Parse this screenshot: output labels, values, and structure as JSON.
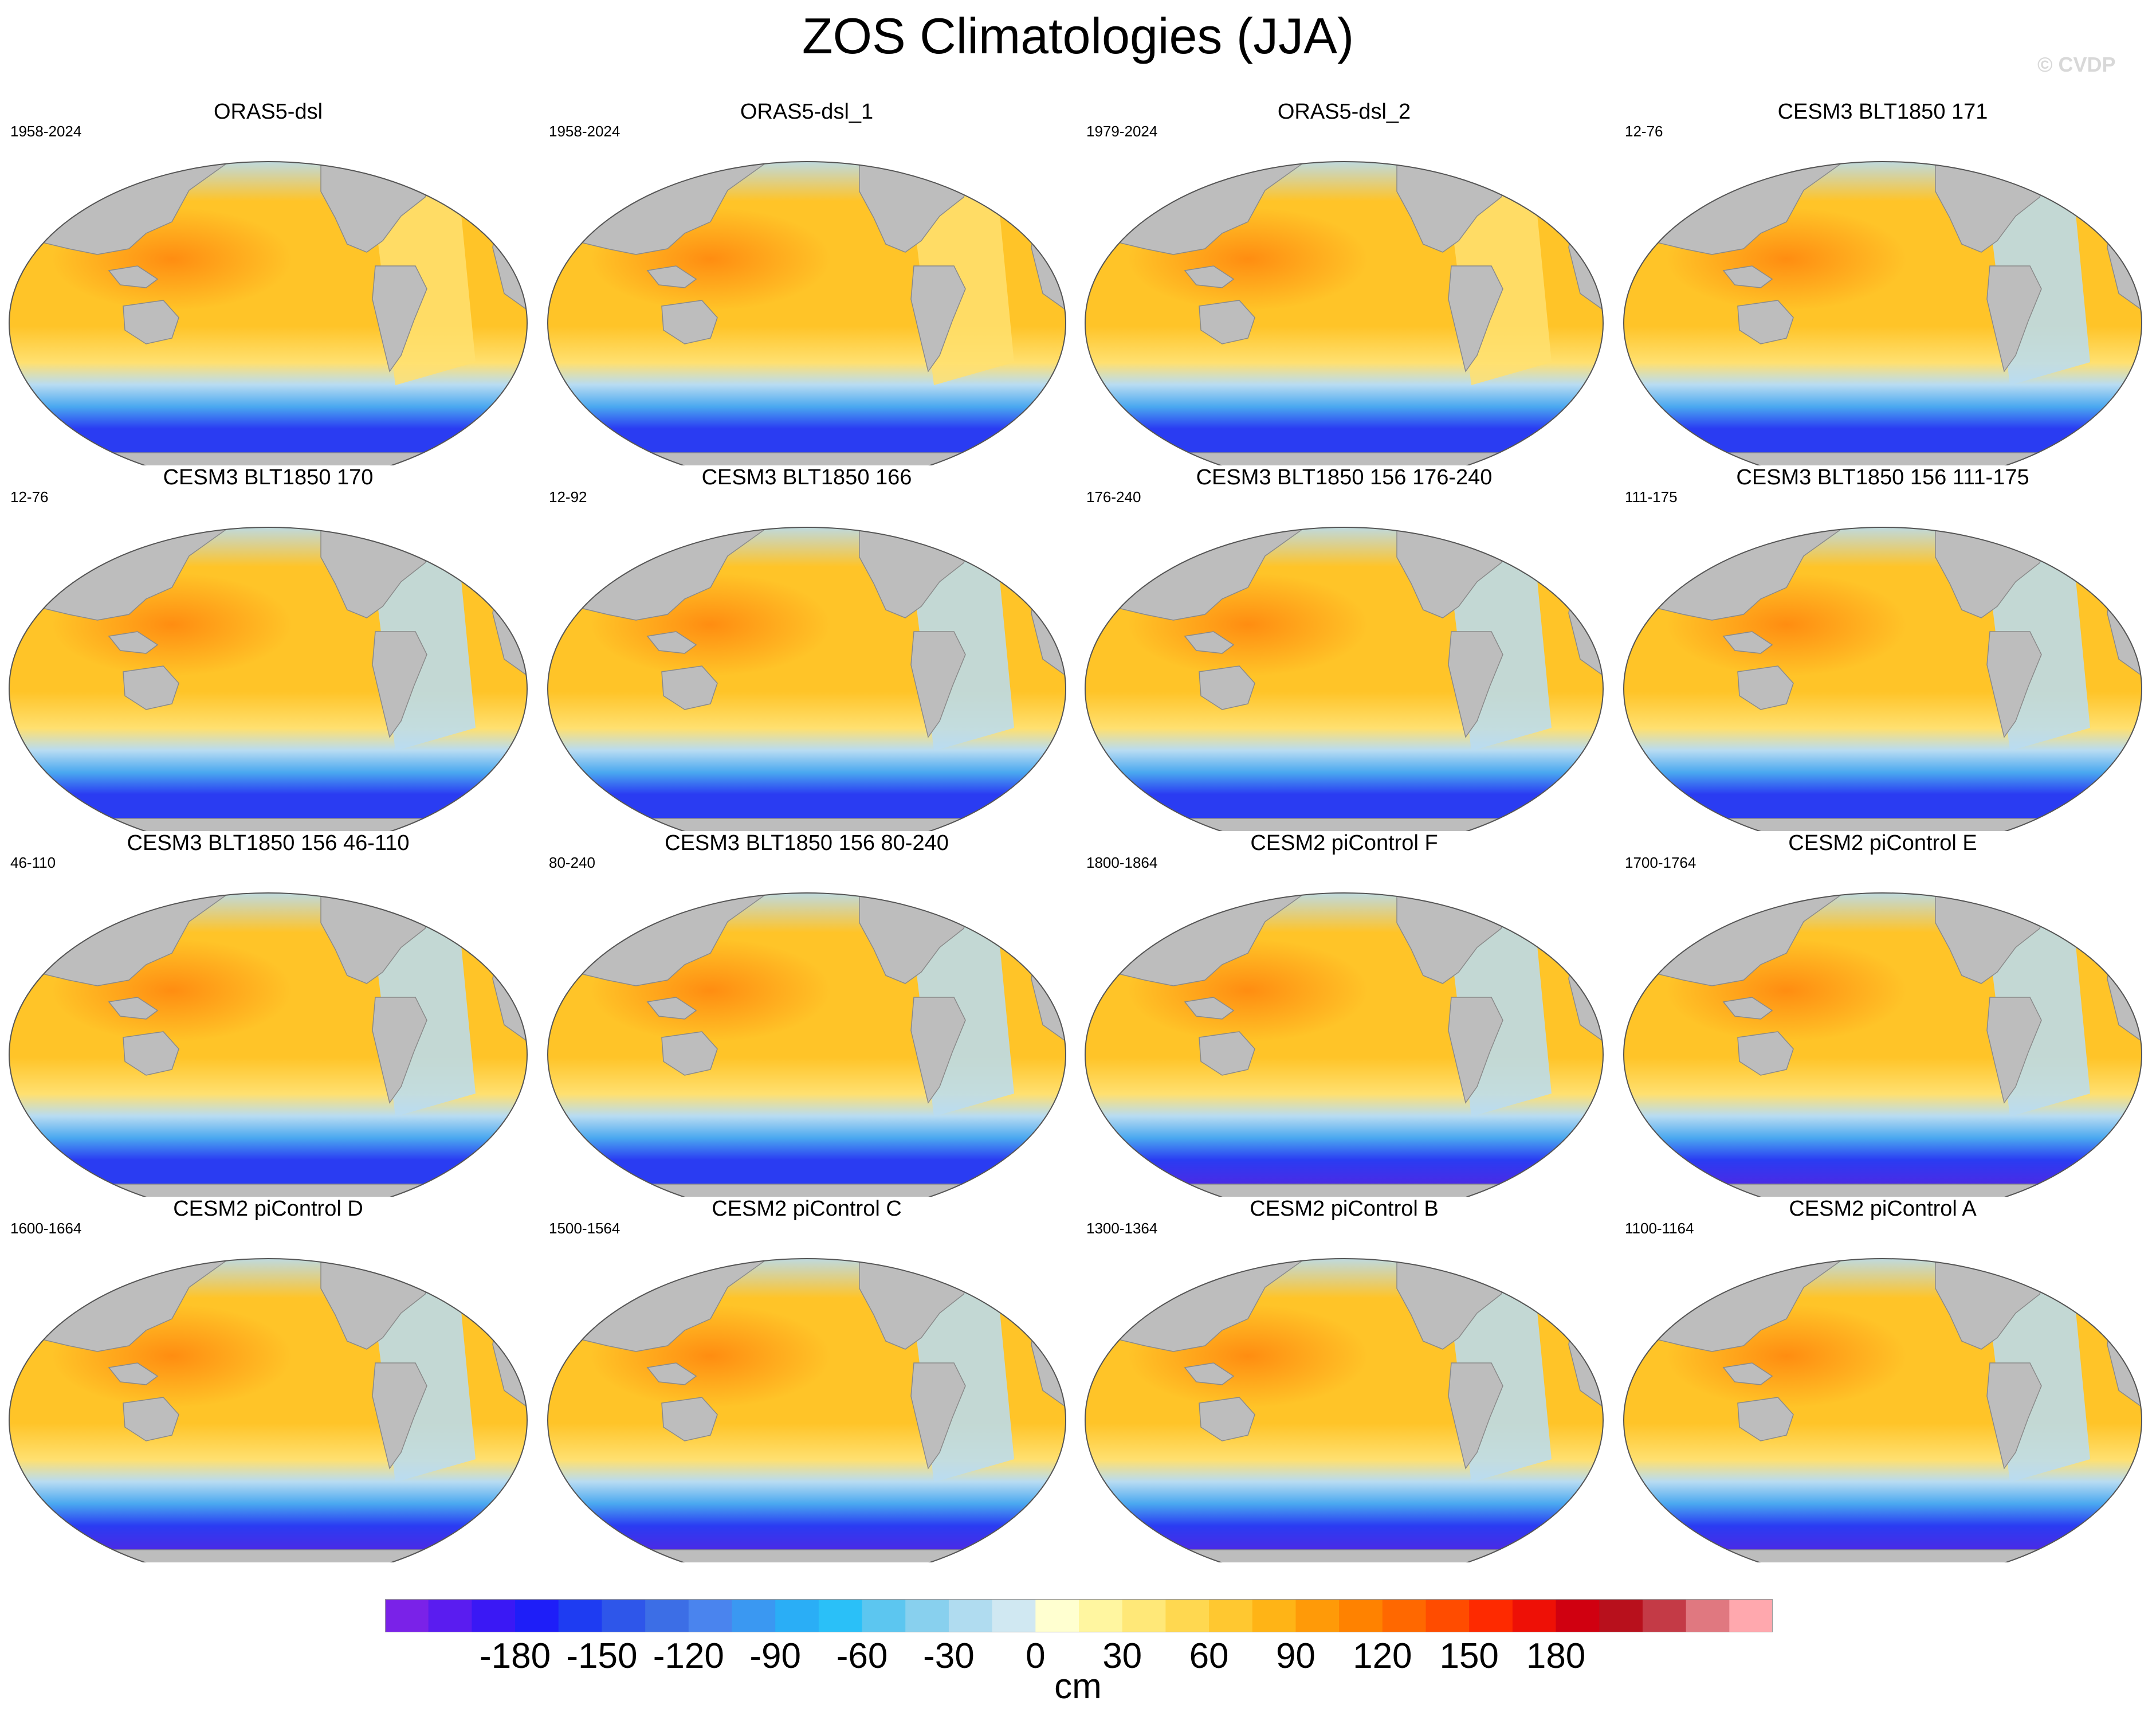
{
  "title": "ZOS Climatologies (JJA)",
  "copyright": "© CVDP",
  "units": "cm",
  "colorbar": {
    "ticks": [
      "-180",
      "-150",
      "-120",
      "-90",
      "-60",
      "-30",
      "0",
      "30",
      "60",
      "90",
      "120",
      "150",
      "180"
    ],
    "colors": [
      "#7a22e8",
      "#5a1cf0",
      "#3a18f5",
      "#1e1ef8",
      "#1e3cf2",
      "#2e56ea",
      "#3c6ee6",
      "#4a84ee",
      "#3a98f2",
      "#2aaef6",
      "#2ac0f8",
      "#5cc6f0",
      "#88d0ee",
      "#b0dcf0",
      "#d0e8f2",
      "#ffffd0",
      "#fff6a0",
      "#ffe878",
      "#ffd850",
      "#ffc830",
      "#ffb416",
      "#ff9a08",
      "#ff8200",
      "#ff6800",
      "#ff4c00",
      "#fe2a00",
      "#ee1006",
      "#d00010",
      "#b8101c",
      "#c43a46",
      "#e07880",
      "#ffa8ae"
    ]
  },
  "panels": [
    {
      "title": "ORAS5-dsl",
      "years": "1958-2024",
      "style": "obs"
    },
    {
      "title": "ORAS5-dsl_1",
      "years": "1958-2024",
      "style": "obs"
    },
    {
      "title": "ORAS5-dsl_2",
      "years": "1979-2024",
      "style": "obs"
    },
    {
      "title": "CESM3 BLT1850 171",
      "years": "12-76",
      "style": "cesm3"
    },
    {
      "title": "CESM3 BLT1850 170",
      "years": "12-76",
      "style": "cesm3"
    },
    {
      "title": "CESM3 BLT1850 166",
      "years": "12-92",
      "style": "cesm3"
    },
    {
      "title": "CESM3 BLT1850 156 176-240",
      "years": "176-240",
      "style": "cesm3"
    },
    {
      "title": "CESM3 BLT1850 156 111-175",
      "years": "111-175",
      "style": "cesm3"
    },
    {
      "title": "CESM3 BLT1850 156 46-110",
      "years": "46-110",
      "style": "cesm3"
    },
    {
      "title": "CESM3 BLT1850 156 80-240",
      "years": "80-240",
      "style": "cesm3"
    },
    {
      "title": "CESM2 piControl F",
      "years": "1800-1864",
      "style": "cesm2"
    },
    {
      "title": "CESM2 piControl E",
      "years": "1700-1764",
      "style": "cesm2"
    },
    {
      "title": "CESM2 piControl D",
      "years": "1600-1664",
      "style": "cesm2"
    },
    {
      "title": "CESM2 piControl C",
      "years": "1500-1564",
      "style": "cesm2"
    },
    {
      "title": "CESM2 piControl B",
      "years": "1300-1364",
      "style": "cesm2"
    },
    {
      "title": "CESM2 piControl A",
      "years": "1100-1164",
      "style": "cesm2"
    }
  ],
  "map_colors": {
    "land": "#bdbdbd",
    "ocean_warm": "#ffc428",
    "ocean_hot": "#ff8a10",
    "ocean_mid": "#ffe070",
    "ocean_cool": "#b8dcf2",
    "ocean_cold": "#4aa8f0",
    "ocean_south": "#2a3cf2",
    "ocean_deep": "#5a22e0"
  }
}
